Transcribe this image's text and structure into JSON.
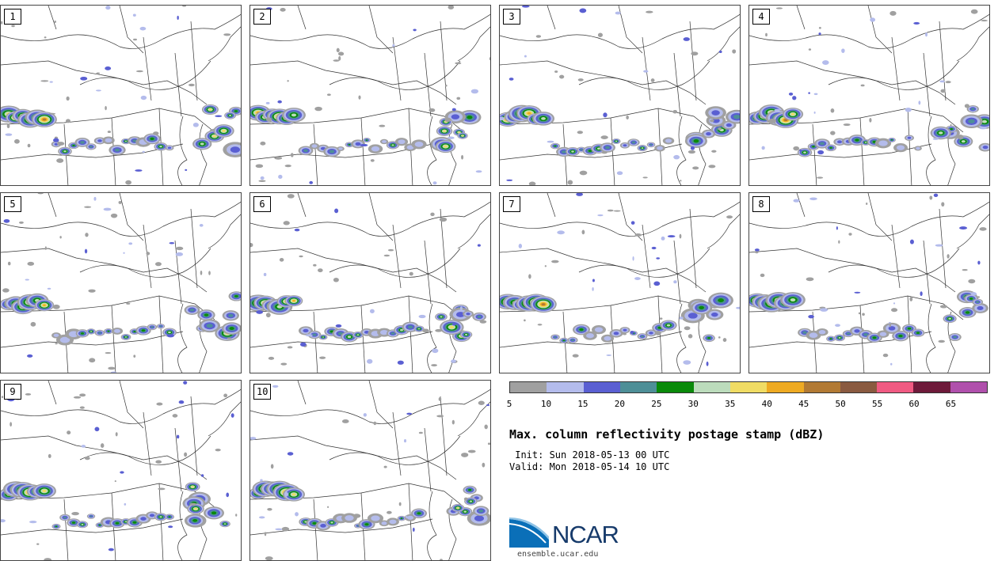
{
  "panels": [
    {
      "label": "1"
    },
    {
      "label": "2"
    },
    {
      "label": "3"
    },
    {
      "label": "4"
    },
    {
      "label": "5"
    },
    {
      "label": "6"
    },
    {
      "label": "7"
    },
    {
      "label": "8"
    },
    {
      "label": "9"
    },
    {
      "label": "10"
    }
  ],
  "colorbar": {
    "colors": [
      "#a0a0a0",
      "#b4bcec",
      "#5a5fd2",
      "#4e8f97",
      "#0a8a0a",
      "#bcdcbc",
      "#f0dc64",
      "#eeaa22",
      "#b27a34",
      "#8a5a40",
      "#f05a82",
      "#6e1a3a",
      "#b050ac"
    ],
    "ticks": [
      "5",
      "10",
      "15",
      "20",
      "25",
      "30",
      "35",
      "40",
      "45",
      "50",
      "55",
      "60",
      "65"
    ]
  },
  "title": "Max. column reflectivity postage stamp (dBZ)",
  "init": " Init: Sun 2018-05-13 00 UTC",
  "valid": "Valid: Mon 2018-05-14 10 UTC",
  "logo": {
    "text": "NCAR",
    "site": "ensemble.ucar.edu"
  }
}
